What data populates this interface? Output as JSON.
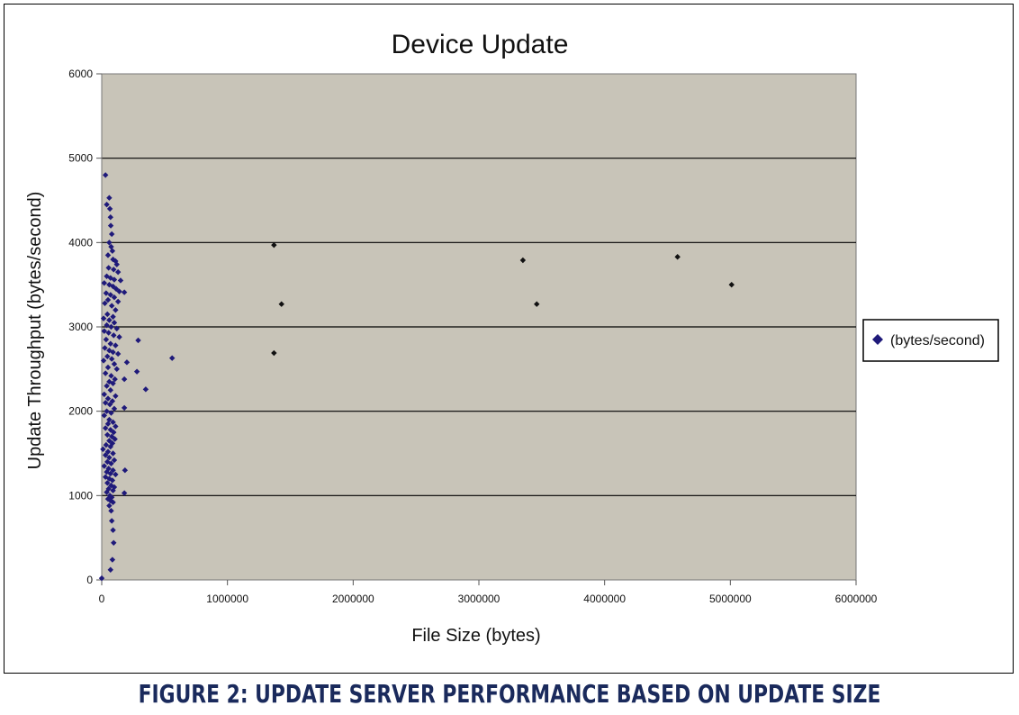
{
  "caption": "FIGURE 2: UPDATE SERVER PERFORMANCE BASED ON UPDATE SIZE",
  "colors": {
    "plot_bg": "#c8c4b8",
    "marker_cluster": "#1f1a7a",
    "marker_outlier": "#111111",
    "gridline": "#000000"
  },
  "chart_data": {
    "type": "scatter",
    "title": "Device Update",
    "xlabel": "File Size (bytes)",
    "ylabel": "Update Throughput (bytes/second)",
    "xlim": [
      0,
      6000000
    ],
    "ylim": [
      0,
      6000
    ],
    "x_ticks": [
      0,
      1000000,
      2000000,
      3000000,
      4000000,
      5000000,
      6000000
    ],
    "x_tick_labels": [
      "0",
      "1000000",
      "2000000",
      "3000000",
      "4000000",
      "5000000",
      "6000000"
    ],
    "y_ticks": [
      0,
      1000,
      2000,
      3000,
      4000,
      5000,
      6000
    ],
    "y_tick_labels": [
      "0",
      "1000",
      "2000",
      "3000",
      "4000",
      "5000",
      "6000"
    ],
    "grid": "horizontal",
    "legend_position": "right",
    "series": [
      {
        "name": "(bytes/second)",
        "points": [
          [
            0,
            20
          ],
          [
            30000,
            4800
          ],
          [
            40000,
            4450
          ],
          [
            60000,
            4530
          ],
          [
            65000,
            4400
          ],
          [
            70000,
            4300
          ],
          [
            72000,
            4200
          ],
          [
            80000,
            4100
          ],
          [
            60000,
            4000
          ],
          [
            75000,
            3950
          ],
          [
            85000,
            3900
          ],
          [
            50000,
            3850
          ],
          [
            90000,
            3800
          ],
          [
            110000,
            3780
          ],
          [
            120000,
            3740
          ],
          [
            55000,
            3700
          ],
          [
            95000,
            3680
          ],
          [
            130000,
            3650
          ],
          [
            40000,
            3600
          ],
          [
            70000,
            3580
          ],
          [
            100000,
            3560
          ],
          [
            150000,
            3550
          ],
          [
            20000,
            3520
          ],
          [
            60000,
            3500
          ],
          [
            90000,
            3480
          ],
          [
            115000,
            3450
          ],
          [
            140000,
            3420
          ],
          [
            180000,
            3410
          ],
          [
            35000,
            3400
          ],
          [
            70000,
            3380
          ],
          [
            100000,
            3350
          ],
          [
            50000,
            3320
          ],
          [
            130000,
            3300
          ],
          [
            25000,
            3280
          ],
          [
            80000,
            3250
          ],
          [
            110000,
            3200
          ],
          [
            45000,
            3150
          ],
          [
            90000,
            3120
          ],
          [
            15000,
            3100
          ],
          [
            60000,
            3080
          ],
          [
            100000,
            3050
          ],
          [
            40000,
            3020
          ],
          [
            75000,
            3000
          ],
          [
            120000,
            2980
          ],
          [
            20000,
            2950
          ],
          [
            55000,
            2930
          ],
          [
            95000,
            2900
          ],
          [
            140000,
            2880
          ],
          [
            290000,
            2840
          ],
          [
            35000,
            2850
          ],
          [
            70000,
            2800
          ],
          [
            110000,
            2780
          ],
          [
            25000,
            2750
          ],
          [
            60000,
            2720
          ],
          [
            90000,
            2700
          ],
          [
            130000,
            2680
          ],
          [
            45000,
            2650
          ],
          [
            80000,
            2620
          ],
          [
            15000,
            2600
          ],
          [
            200000,
            2580
          ],
          [
            560000,
            2630
          ],
          [
            100000,
            2560
          ],
          [
            50000,
            2520
          ],
          [
            120000,
            2500
          ],
          [
            280000,
            2470
          ],
          [
            30000,
            2450
          ],
          [
            75000,
            2420
          ],
          [
            105000,
            2380
          ],
          [
            180000,
            2380
          ],
          [
            60000,
            2350
          ],
          [
            90000,
            2330
          ],
          [
            40000,
            2300
          ],
          [
            350000,
            2260
          ],
          [
            70000,
            2250
          ],
          [
            20000,
            2200
          ],
          [
            110000,
            2180
          ],
          [
            50000,
            2150
          ],
          [
            85000,
            2120
          ],
          [
            30000,
            2100
          ],
          [
            65000,
            2080
          ],
          [
            180000,
            2040
          ],
          [
            100000,
            2030
          ],
          [
            40000,
            2000
          ],
          [
            75000,
            1980
          ],
          [
            20000,
            1950
          ],
          [
            60000,
            1900
          ],
          [
            90000,
            1870
          ],
          [
            50000,
            1850
          ],
          [
            110000,
            1820
          ],
          [
            30000,
            1800
          ],
          [
            70000,
            1780
          ],
          [
            95000,
            1750
          ],
          [
            45000,
            1720
          ],
          [
            80000,
            1700
          ],
          [
            105000,
            1670
          ],
          [
            60000,
            1650
          ],
          [
            85000,
            1620
          ],
          [
            35000,
            1600
          ],
          [
            70000,
            1580
          ],
          [
            10000,
            1550
          ],
          [
            50000,
            1520
          ],
          [
            90000,
            1500
          ],
          [
            30000,
            1480
          ],
          [
            60000,
            1450
          ],
          [
            100000,
            1420
          ],
          [
            45000,
            1400
          ],
          [
            75000,
            1380
          ],
          [
            20000,
            1350
          ],
          [
            55000,
            1320
          ],
          [
            185000,
            1300
          ],
          [
            90000,
            1300
          ],
          [
            40000,
            1280
          ],
          [
            70000,
            1260
          ],
          [
            110000,
            1250
          ],
          [
            30000,
            1220
          ],
          [
            60000,
            1200
          ],
          [
            85000,
            1180
          ],
          [
            45000,
            1150
          ],
          [
            75000,
            1120
          ],
          [
            100000,
            1100
          ],
          [
            55000,
            1080
          ],
          [
            90000,
            1060
          ],
          [
            180000,
            1030
          ],
          [
            40000,
            1040
          ],
          [
            65000,
            1000
          ],
          [
            80000,
            980
          ],
          [
            50000,
            960
          ],
          [
            70000,
            940
          ],
          [
            90000,
            920
          ],
          [
            60000,
            880
          ],
          [
            75000,
            820
          ],
          [
            80000,
            700
          ],
          [
            90000,
            590
          ],
          [
            95000,
            440
          ],
          [
            85000,
            240
          ],
          [
            70000,
            120
          ]
        ]
      },
      {
        "name": "(bytes/second)",
        "points": [
          [
            1370000,
            3970
          ],
          [
            1430000,
            3270
          ],
          [
            1370000,
            2690
          ],
          [
            3350000,
            3790
          ],
          [
            3460000,
            3270
          ],
          [
            4580000,
            3830
          ],
          [
            5010000,
            3500
          ]
        ]
      }
    ]
  }
}
